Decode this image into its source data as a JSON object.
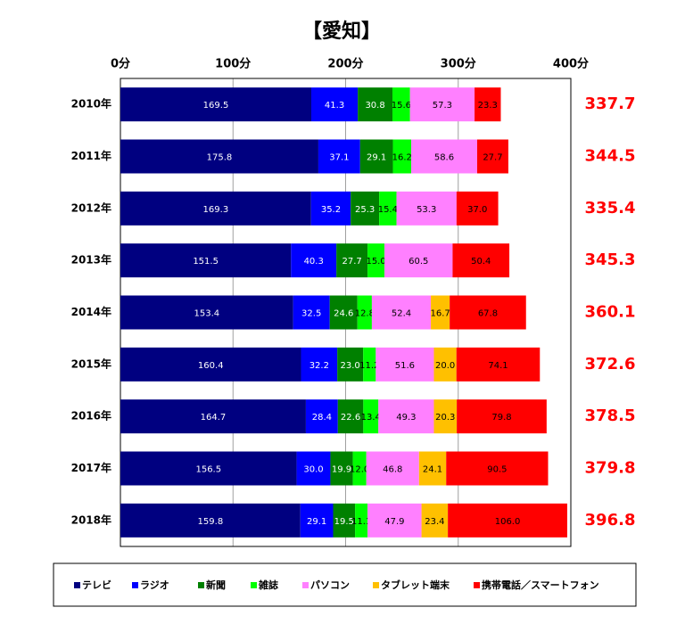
{
  "chart_data": {
    "type": "stacked-barh",
    "title": "【愛知】",
    "categories": [
      "2010年",
      "2011年",
      "2012年",
      "2013年",
      "2014年",
      "2015年",
      "2016年",
      "2017年",
      "2018年"
    ],
    "series": [
      {
        "name": "テレビ",
        "color": "#000080",
        "values": [
          169.5,
          175.8,
          169.3,
          151.5,
          153.4,
          160.4,
          164.7,
          156.5,
          159.8
        ]
      },
      {
        "name": "ラジオ",
        "color": "#0000ff",
        "values": [
          41.3,
          37.1,
          35.2,
          40.3,
          32.5,
          32.2,
          28.4,
          30.0,
          29.1
        ],
        "value_labels": [
          "41.3",
          "37.1",
          "35.2",
          "40.3",
          "32.5",
          "32.2",
          "28.4",
          "30.0",
          "29.1"
        ]
      },
      {
        "name": "新聞",
        "color": "#008000",
        "values": [
          30.8,
          29.1,
          25.3,
          27.7,
          24.6,
          23.0,
          22.6,
          19.9,
          19.5
        ],
        "value_labels": [
          "30.8",
          "29.1",
          "25.3",
          "27.7",
          "24.6",
          "23.0",
          "22.6",
          "19.9",
          "19.5"
        ]
      },
      {
        "name": "雑誌",
        "color": "#00ff00",
        "values": [
          15.6,
          16.2,
          15.4,
          15.0,
          12.8,
          11.2,
          13.4,
          12.0,
          11.1
        ],
        "value_labels": [
          "15.6",
          "16.2",
          "15.4",
          "15.0",
          "12.8",
          "11.2",
          "13.4",
          "12.0",
          "11.1"
        ]
      },
      {
        "name": "パソコン",
        "color": "#ff80ff",
        "values": [
          57.3,
          58.6,
          53.3,
          60.5,
          52.4,
          51.6,
          49.3,
          46.8,
          47.9
        ]
      },
      {
        "name": "タブレット端末",
        "color": "#ffc000",
        "values": [
          null,
          null,
          null,
          null,
          16.7,
          20.0,
          20.3,
          24.1,
          23.4
        ],
        "value_labels": [
          null,
          null,
          null,
          null,
          "16.7",
          "20.0",
          "20.3",
          "24.1",
          "23.4"
        ]
      },
      {
        "name": "携帯電話／スマートフォン",
        "color": "#ff0000",
        "values": [
          23.3,
          27.7,
          37.0,
          50.4,
          67.8,
          74.1,
          79.8,
          90.5,
          106.0
        ],
        "value_labels": [
          "23.3",
          "27.7",
          "37.0",
          "50.4",
          "67.8",
          "74.1",
          "79.8",
          "90.5",
          "106.0"
        ]
      }
    ],
    "totals": [
      337.7,
      344.5,
      335.4,
      345.3,
      360.1,
      372.6,
      378.5,
      379.8,
      396.8
    ],
    "totals_color": "#ff0000",
    "xlim": [
      0,
      400
    ],
    "xticks": [
      {
        "value": 0,
        "label": "0分"
      },
      {
        "value": 100,
        "label": "100分"
      },
      {
        "value": 200,
        "label": "200分"
      },
      {
        "value": 300,
        "label": "300分"
      },
      {
        "value": 400,
        "label": "400分"
      }
    ],
    "grid": true,
    "legend": "bottom"
  }
}
